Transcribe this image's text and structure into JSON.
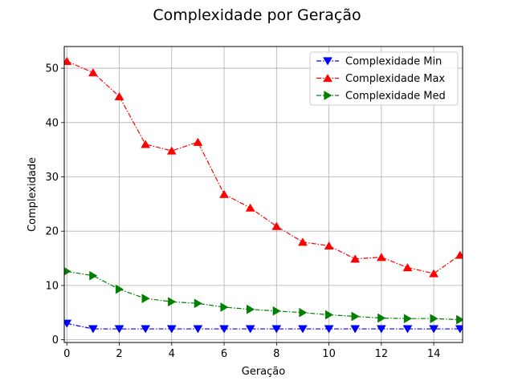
{
  "chart_data": {
    "type": "line",
    "title": "Complexidade por Geração",
    "xlabel": "Geração",
    "ylabel": "Complexidade",
    "xlim": [
      -0.1,
      15.1
    ],
    "ylim": [
      -0.5,
      54
    ],
    "xticks": [
      0,
      2,
      4,
      6,
      8,
      10,
      12,
      14
    ],
    "yticks": [
      0,
      10,
      20,
      30,
      40,
      50
    ],
    "grid": true,
    "legend_position": "upper-right",
    "x": [
      0,
      1,
      2,
      3,
      4,
      5,
      6,
      7,
      8,
      9,
      10,
      11,
      12,
      13,
      14,
      15
    ],
    "series": [
      {
        "name": "Complexidade Min",
        "color": "#0000ff",
        "marker": "triangle-down",
        "values": [
          3.0,
          2.0,
          2.0,
          2.0,
          2.0,
          2.0,
          2.0,
          2.0,
          2.0,
          2.0,
          2.0,
          2.0,
          2.0,
          2.0,
          2.0,
          2.0
        ]
      },
      {
        "name": "Complexidade Max",
        "color": "#ff0000",
        "marker": "triangle-up",
        "values": [
          51.3,
          49.2,
          44.8,
          36.0,
          34.8,
          36.4,
          26.8,
          24.3,
          20.9,
          18.0,
          17.3,
          14.9,
          15.2,
          13.3,
          12.2,
          15.6
        ]
      },
      {
        "name": "Complexidade Med",
        "color": "#008000",
        "marker": "triangle-right",
        "values": [
          12.6,
          11.8,
          9.3,
          7.6,
          7.0,
          6.7,
          6.0,
          5.6,
          5.3,
          5.0,
          4.6,
          4.3,
          4.0,
          3.9,
          3.9,
          3.7
        ]
      }
    ]
  }
}
